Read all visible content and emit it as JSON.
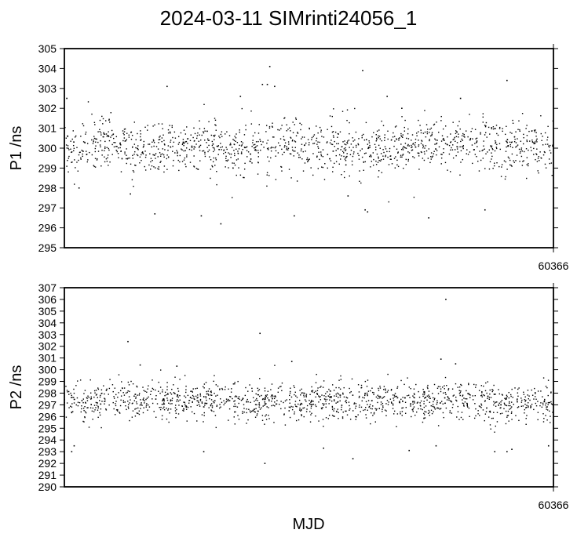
{
  "title": "2024-03-11 SIMrinti24056_1",
  "xlabel": "MJD",
  "chart_data": [
    {
      "type": "scatter",
      "ylabel": "P1 /ns",
      "ylim": [
        295,
        305
      ],
      "yticks": [
        295,
        296,
        297,
        298,
        299,
        300,
        301,
        302,
        303,
        304,
        305
      ],
      "xticks": [
        "60366"
      ],
      "grid": false,
      "point_color": "#000000",
      "series": [
        {
          "spread": 0.65,
          "points": [
            {
              "x": 0.0,
              "y": 299.9
            },
            {
              "x": 0.05,
              "y": 300.1
            },
            {
              "x": 0.1,
              "y": 300.2
            },
            {
              "x": 0.15,
              "y": 300.0
            },
            {
              "x": 0.2,
              "y": 300.1
            },
            {
              "x": 0.25,
              "y": 300.1
            },
            {
              "x": 0.3,
              "y": 300.2
            },
            {
              "x": 0.35,
              "y": 300.0
            },
            {
              "x": 0.4,
              "y": 300.1
            },
            {
              "x": 0.45,
              "y": 300.2
            },
            {
              "x": 0.5,
              "y": 300.0
            },
            {
              "x": 0.55,
              "y": 300.1
            },
            {
              "x": 0.6,
              "y": 299.9
            },
            {
              "x": 0.65,
              "y": 300.0
            },
            {
              "x": 0.7,
              "y": 300.1
            },
            {
              "x": 0.75,
              "y": 300.3
            },
            {
              "x": 0.8,
              "y": 300.2
            },
            {
              "x": 0.85,
              "y": 300.1
            },
            {
              "x": 0.9,
              "y": 300.1
            },
            {
              "x": 0.95,
              "y": 300.2
            },
            {
              "x": 1.0,
              "y": 300.0
            }
          ]
        }
      ],
      "outliers": [
        {
          "x": 0.005,
          "y": 302.5
        },
        {
          "x": 0.03,
          "y": 298.0
        },
        {
          "x": 0.135,
          "y": 297.7
        },
        {
          "x": 0.185,
          "y": 296.7
        },
        {
          "x": 0.21,
          "y": 303.1
        },
        {
          "x": 0.28,
          "y": 296.6
        },
        {
          "x": 0.32,
          "y": 296.2
        },
        {
          "x": 0.36,
          "y": 302.6
        },
        {
          "x": 0.405,
          "y": 303.2
        },
        {
          "x": 0.415,
          "y": 303.2
        },
        {
          "x": 0.42,
          "y": 304.1
        },
        {
          "x": 0.43,
          "y": 303.1
        },
        {
          "x": 0.47,
          "y": 296.6
        },
        {
          "x": 0.58,
          "y": 297.6
        },
        {
          "x": 0.615,
          "y": 296.9
        },
        {
          "x": 0.62,
          "y": 296.8
        },
        {
          "x": 0.66,
          "y": 302.6
        },
        {
          "x": 0.69,
          "y": 302.0
        },
        {
          "x": 0.745,
          "y": 296.5
        },
        {
          "x": 0.81,
          "y": 302.5
        },
        {
          "x": 0.86,
          "y": 296.9
        },
        {
          "x": 0.905,
          "y": 303.4
        },
        {
          "x": 0.61,
          "y": 303.9
        }
      ]
    },
    {
      "type": "scatter",
      "ylabel": "P2 /ns",
      "ylim": [
        290,
        307
      ],
      "yticks": [
        290,
        291,
        292,
        293,
        294,
        295,
        296,
        297,
        298,
        299,
        300,
        301,
        302,
        303,
        304,
        305,
        306,
        307
      ],
      "xticks": [
        "60366"
      ],
      "grid": false,
      "point_color": "#000000",
      "series": [
        {
          "spread": 0.8,
          "points": [
            {
              "x": 0.0,
              "y": 297.2
            },
            {
              "x": 0.05,
              "y": 297.2
            },
            {
              "x": 0.1,
              "y": 297.5
            },
            {
              "x": 0.15,
              "y": 297.5
            },
            {
              "x": 0.2,
              "y": 297.4
            },
            {
              "x": 0.25,
              "y": 297.3
            },
            {
              "x": 0.3,
              "y": 297.4
            },
            {
              "x": 0.35,
              "y": 297.3
            },
            {
              "x": 0.4,
              "y": 297.3
            },
            {
              "x": 0.45,
              "y": 297.4
            },
            {
              "x": 0.5,
              "y": 297.3
            },
            {
              "x": 0.55,
              "y": 297.3
            },
            {
              "x": 0.6,
              "y": 297.2
            },
            {
              "x": 0.65,
              "y": 297.3
            },
            {
              "x": 0.7,
              "y": 297.4
            },
            {
              "x": 0.75,
              "y": 297.3
            },
            {
              "x": 0.8,
              "y": 297.5
            },
            {
              "x": 0.85,
              "y": 297.3
            },
            {
              "x": 0.9,
              "y": 297.2
            },
            {
              "x": 0.95,
              "y": 297.2
            },
            {
              "x": 1.0,
              "y": 297.0
            }
          ]
        }
      ],
      "outliers": [
        {
          "x": 0.015,
          "y": 293.0
        },
        {
          "x": 0.02,
          "y": 293.5
        },
        {
          "x": 0.13,
          "y": 302.4
        },
        {
          "x": 0.155,
          "y": 300.4
        },
        {
          "x": 0.23,
          "y": 300.3
        },
        {
          "x": 0.285,
          "y": 293.0
        },
        {
          "x": 0.4,
          "y": 303.1
        },
        {
          "x": 0.41,
          "y": 292.0
        },
        {
          "x": 0.465,
          "y": 300.7
        },
        {
          "x": 0.53,
          "y": 293.3
        },
        {
          "x": 0.59,
          "y": 292.4
        },
        {
          "x": 0.705,
          "y": 293.1
        },
        {
          "x": 0.76,
          "y": 293.5
        },
        {
          "x": 0.77,
          "y": 300.9
        },
        {
          "x": 0.78,
          "y": 306.0
        },
        {
          "x": 0.8,
          "y": 300.5
        },
        {
          "x": 0.88,
          "y": 293.0
        },
        {
          "x": 0.905,
          "y": 293.0
        },
        {
          "x": 0.915,
          "y": 293.2
        },
        {
          "x": 0.99,
          "y": 293.5
        }
      ]
    }
  ]
}
